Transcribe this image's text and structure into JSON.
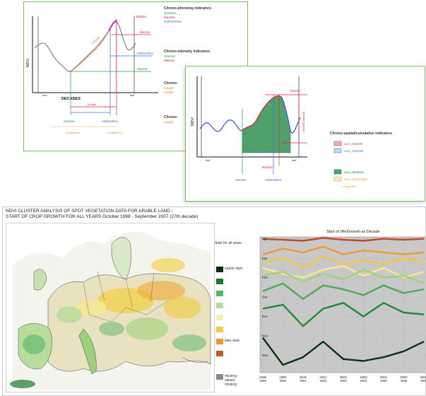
{
  "panel1": {
    "axis_y": "NDVI",
    "axis_x": "DECADES",
    "tick_first": "first",
    "tick_last": "last",
    "indicator_groups": [
      {
        "title": "Chrono-phenolog indicators",
        "items": [
          {
            "label": "StartDec",
            "color": "#2aa04a"
          },
          {
            "label": "MaxDec",
            "color": "#d62a3a"
          },
          {
            "label": "HalfStartDec",
            "color": "#3c6fd0"
          }
        ]
      },
      {
        "title": "Chrono-intensity indicators",
        "items": [
          {
            "label": "StartVal",
            "color": "#2aa04a"
          },
          {
            "label": "MaxVal",
            "color": "#d62a3a"
          }
        ]
      },
      {
        "title": "Chrono-",
        "items": [
          {
            "label": "Length",
            "color": "#e08a3a"
          },
          {
            "label": "Length",
            "color": "#e08a3a"
          }
        ]
      },
      {
        "title": "Chrono-",
        "items": [
          {
            "label": "Length",
            "color": "#e08a3a"
          }
        ]
      }
    ],
    "annotations": {
      "maxdec": "MaxDec",
      "halfstart": "HalfStartDec",
      "startval": "StartVal",
      "maxval": "MaxVal",
      "startdec_bottom": "StartDec",
      "halfstart_bottom": "HalfStartDec",
      "length_a": "Length",
      "length_b": "LengthB",
      "length_c": "LengthAbs",
      "length_d": "LengthEnd"
    }
  },
  "panel2": {
    "axis_y": "NDVI",
    "tick_first": "first",
    "tick_last": "last",
    "legend_title": "Chrono-spatial/cumulative indicators",
    "legend_items": [
      {
        "label": "Cum_StartVal",
        "color": "#e8b0b0",
        "border": "#c84a4a"
      },
      {
        "label": "Cum_StartHalf",
        "color": "#bcd8ee",
        "border": "#4a8ac8"
      },
      {
        "label": "Cum_StartEnd",
        "color": "#6ab88a",
        "border": "#2a7a4a"
      },
      {
        "label": "Cum_StartLength",
        "color": "#fbe8c8",
        "border": "#e0a040"
      }
    ],
    "legend_extra": "LengthAbs",
    "annotations": {
      "maxval": "MaxVal",
      "vertical": "MaxVal-StartVal",
      "startdec": "StartDec",
      "halfstart": "HalfStartDec",
      "maxdec": "MaxDec"
    }
  },
  "panel3": {
    "title_line1": "NDVI CLUSTER ANALYSIS OF SPOT VEGETATION DATA FOR ARABLE LAND -",
    "title_line2": "START OF CROP GROWTH FOR ALL YEARS October 1998 - September 2007 (27th decade)",
    "legend_heading": "Start for all years",
    "legend_items": [
      {
        "color": "#0c2a0c",
        "label": "earlier start"
      },
      {
        "color": "#1c7a30",
        "label": ""
      },
      {
        "color": "#58b46a",
        "label": ""
      },
      {
        "color": "#b8dc9c",
        "label": ""
      },
      {
        "color": "#f4eeb0",
        "label": ""
      },
      {
        "color": "#f2cc3a",
        "label": ""
      },
      {
        "color": "#f09a28",
        "label": "later start"
      },
      {
        "color": "#c05a2a",
        "label": ""
      }
    ],
    "legend_nodata": {
      "color": "#888888",
      "label": "missing values missing"
    }
  },
  "chart_data": {
    "type": "line",
    "title": "Start of (Re)Growth as Decade",
    "categories": [
      "1998/1999",
      "1999/2000",
      "2000/2001",
      "2001/2002",
      "2002/2003",
      "2003/2004",
      "2004/2005",
      "2005/2006",
      "2006/2007"
    ],
    "y_ticks": [
      "Sep",
      "Nov",
      "Dec",
      "Jan",
      "Feb",
      "Mar",
      "Apr"
    ],
    "ylim": [
      0,
      7
    ],
    "series": [
      {
        "color": "#c04a28",
        "values": [
          6.9,
          6.85,
          6.8,
          6.95,
          6.85,
          6.8,
          6.9,
          6.85,
          6.9
        ]
      },
      {
        "color": "#f09a28",
        "values": [
          6.1,
          6.4,
          6.2,
          6.5,
          6.1,
          6.3,
          6.2,
          6.1,
          6.2
        ]
      },
      {
        "color": "#f2c83a",
        "values": [
          5.7,
          5.9,
          5.4,
          6.0,
          5.6,
          5.8,
          5.6,
          5.9,
          5.7
        ]
      },
      {
        "color": "#f6e890",
        "values": [
          5.4,
          5.1,
          4.9,
          5.3,
          5.5,
          5.0,
          5.4,
          4.9,
          5.2
        ]
      },
      {
        "color": "#9cd478",
        "values": [
          5.0,
          5.2,
          4.7,
          5.1,
          4.8,
          5.3,
          4.9,
          5.0,
          4.6
        ]
      },
      {
        "color": "#4caa58",
        "values": [
          4.2,
          4.6,
          3.8,
          4.5,
          4.3,
          4.0,
          4.5,
          4.1,
          4.3
        ]
      },
      {
        "color": "#1c8a3a",
        "values": [
          3.3,
          3.5,
          2.4,
          3.3,
          3.6,
          2.9,
          3.6,
          3.1,
          3.0
        ]
      },
      {
        "color": "#0c2e12",
        "values": [
          1.8,
          0.4,
          0.8,
          1.6,
          0.7,
          0.6,
          0.8,
          1.1,
          1.6
        ]
      }
    ]
  }
}
